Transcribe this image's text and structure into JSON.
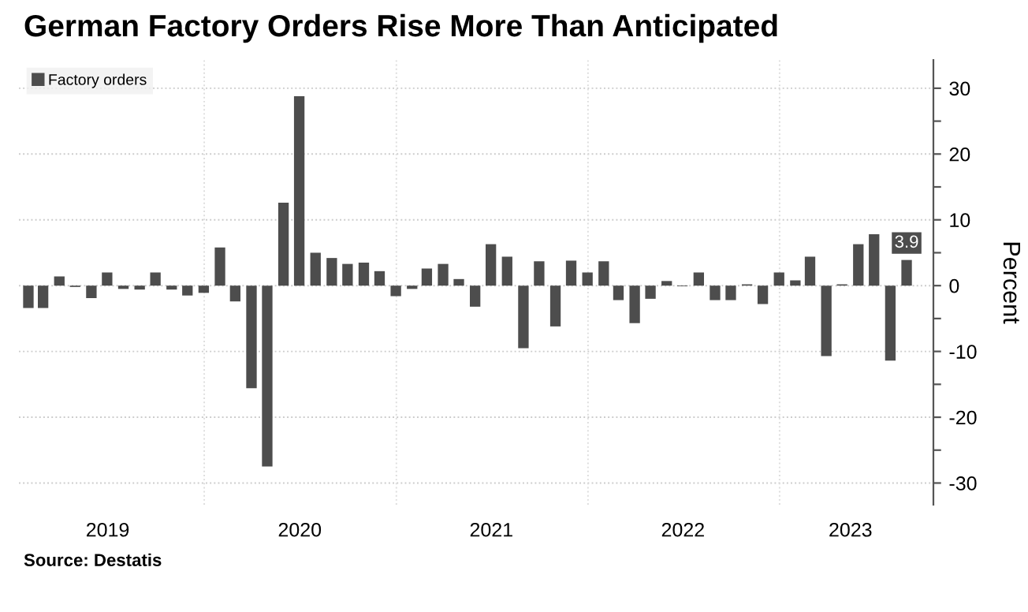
{
  "chart_data": {
    "type": "bar",
    "title": "German Factory Orders Rise More Than Anticipated",
    "ylabel": "Percent",
    "annotations": [
      "Source: Destatis"
    ],
    "x": [
      "2019-01-31",
      "2019-02-28",
      "2019-03-31",
      "2019-04-30",
      "2019-05-31",
      "2019-06-30",
      "2019-07-31",
      "2019-08-31",
      "2019-09-30",
      "2019-10-31",
      "2019-11-30",
      "2019-12-31",
      "2020-01-31",
      "2020-02-29",
      "2020-03-31",
      "2020-04-30",
      "2020-05-31",
      "2020-06-30",
      "2020-07-31",
      "2020-08-31",
      "2020-09-30",
      "2020-10-31",
      "2020-11-30",
      "2020-12-31",
      "2021-01-31",
      "2021-02-28",
      "2021-03-31",
      "2021-04-30",
      "2021-05-31",
      "2021-06-30",
      "2021-07-31",
      "2021-08-31",
      "2021-09-30",
      "2021-10-31",
      "2021-11-30",
      "2021-12-31",
      "2022-01-31",
      "2022-02-28",
      "2022-03-31",
      "2022-04-30",
      "2022-05-31",
      "2022-06-30",
      "2022-07-31",
      "2022-08-31",
      "2022-09-30",
      "2022-10-31",
      "2022-11-30",
      "2022-12-31",
      "2023-01-31",
      "2023-02-28",
      "2023-03-31",
      "2023-04-30",
      "2023-05-31",
      "2023-06-30",
      "2023-07-31",
      "2023-08-31"
    ],
    "series": [
      {
        "name": "Factory orders",
        "color": "#4d4d4d",
        "values": [
          -3.4,
          -3.4,
          1.4,
          -0.2,
          -1.9,
          2.0,
          -0.5,
          -0.6,
          2.0,
          -0.6,
          -1.5,
          -1.1,
          5.8,
          -2.4,
          -15.6,
          -27.5,
          12.6,
          28.8,
          5.0,
          4.2,
          3.3,
          3.5,
          2.2,
          -1.6,
          -0.5,
          2.6,
          3.3,
          1.0,
          -3.2,
          6.3,
          4.4,
          -9.5,
          3.7,
          -6.2,
          3.8,
          2.0,
          3.7,
          -2.2,
          -5.7,
          -2.0,
          0.7,
          -0.1,
          2.0,
          -2.2,
          -2.2,
          0.2,
          -2.8,
          2.0,
          0.8,
          4.4,
          -10.7,
          0.2,
          6.3,
          7.8,
          -11.4,
          3.9
        ],
        "value_labels": [
          null,
          null,
          null,
          null,
          null,
          null,
          null,
          null,
          null,
          null,
          null,
          null,
          null,
          null,
          null,
          null,
          null,
          null,
          null,
          null,
          null,
          null,
          null,
          null,
          null,
          null,
          null,
          null,
          null,
          null,
          null,
          null,
          null,
          null,
          null,
          null,
          null,
          null,
          null,
          null,
          null,
          null,
          null,
          null,
          null,
          null,
          null,
          null,
          null,
          null,
          null,
          null,
          null,
          null,
          null,
          "3.9"
        ]
      }
    ],
    "xlim": [
      "2019-01-13",
      "2023-10-21"
    ],
    "xticks": [
      {
        "value": "2019-07-01",
        "label": "2019"
      },
      {
        "value": "2020-01-01",
        "label": null
      },
      {
        "value": "2020-07-01",
        "label": "2020"
      },
      {
        "value": "2021-01-01",
        "label": null
      },
      {
        "value": "2021-07-01",
        "label": "2021"
      },
      {
        "value": "2022-01-01",
        "label": null
      },
      {
        "value": "2022-07-01",
        "label": "2022"
      },
      {
        "value": "2023-01-01",
        "label": null
      },
      {
        "value": "2023-05-16",
        "label": "2023"
      }
    ],
    "ylim": [
      -33.3,
      34.3
    ],
    "yticks": [
      -30,
      {
        "value": -25,
        "label": null
      },
      -20,
      {
        "value": -15,
        "label": null
      },
      -10,
      {
        "value": -5,
        "label": null
      },
      0,
      {
        "value": 5,
        "label": null
      },
      10,
      {
        "value": 15,
        "label": null
      },
      20,
      {
        "value": 25,
        "label": null
      },
      30
    ],
    "grid": true,
    "legend": "top left"
  }
}
